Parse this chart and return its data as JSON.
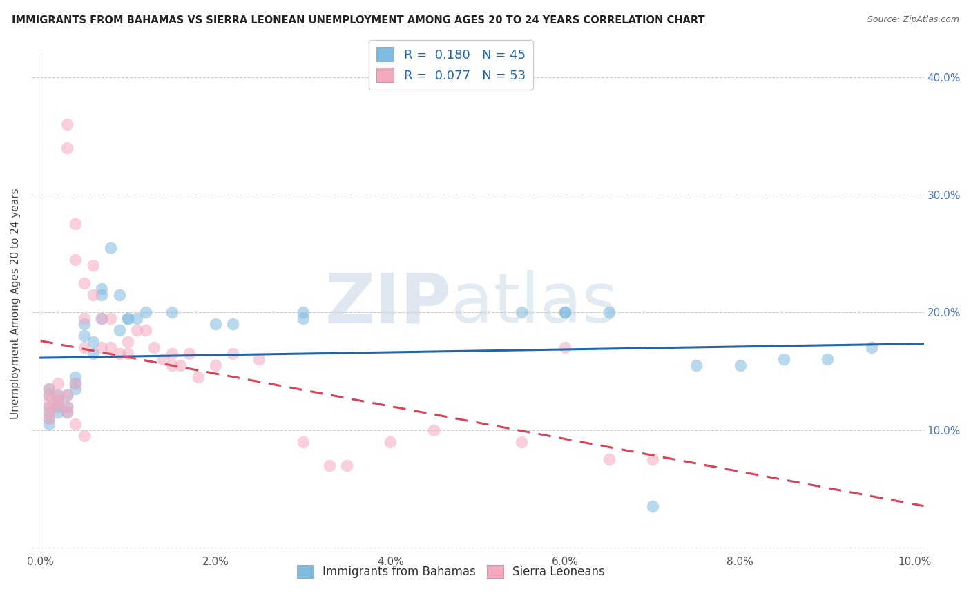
{
  "title": "IMMIGRANTS FROM BAHAMAS VS SIERRA LEONEAN UNEMPLOYMENT AMONG AGES 20 TO 24 YEARS CORRELATION CHART",
  "source": "Source: ZipAtlas.com",
  "ylabel": "Unemployment Among Ages 20 to 24 years",
  "xlim": [
    -0.001,
    0.101
  ],
  "ylim": [
    -0.005,
    0.42
  ],
  "xticks": [
    0.0,
    0.02,
    0.04,
    0.06,
    0.08,
    0.1
  ],
  "xtick_labels": [
    "0.0%",
    "2.0%",
    "4.0%",
    "6.0%",
    "8.0%",
    "10.0%"
  ],
  "yticks": [
    0.0,
    0.1,
    0.2,
    0.3,
    0.4
  ],
  "ytick_labels_right": [
    "",
    "10.0%",
    "20.0%",
    "30.0%",
    "40.0%"
  ],
  "blue_color": "#7fbadf",
  "pink_color": "#f4a8be",
  "blue_line_color": "#2166ac",
  "pink_line_color": "#d6455a",
  "R_blue": 0.18,
  "N_blue": 45,
  "R_pink": 0.077,
  "N_pink": 53,
  "watermark_zip": "ZIP",
  "watermark_atlas": "atlas",
  "blue_scatter_x": [
    0.001,
    0.001,
    0.001,
    0.001,
    0.001,
    0.001,
    0.002,
    0.002,
    0.002,
    0.002,
    0.003,
    0.003,
    0.003,
    0.004,
    0.004,
    0.004,
    0.005,
    0.005,
    0.006,
    0.006,
    0.007,
    0.007,
    0.007,
    0.008,
    0.009,
    0.009,
    0.01,
    0.01,
    0.011,
    0.012,
    0.015,
    0.02,
    0.022,
    0.03,
    0.03,
    0.055,
    0.06,
    0.065,
    0.075,
    0.08,
    0.085,
    0.09,
    0.095,
    0.06,
    0.07
  ],
  "blue_scatter_y": [
    0.13,
    0.135,
    0.12,
    0.115,
    0.11,
    0.105,
    0.13,
    0.125,
    0.12,
    0.115,
    0.13,
    0.12,
    0.115,
    0.135,
    0.14,
    0.145,
    0.18,
    0.19,
    0.175,
    0.165,
    0.22,
    0.215,
    0.195,
    0.255,
    0.215,
    0.185,
    0.195,
    0.195,
    0.195,
    0.2,
    0.2,
    0.19,
    0.19,
    0.195,
    0.2,
    0.2,
    0.2,
    0.2,
    0.155,
    0.155,
    0.16,
    0.16,
    0.17,
    0.2,
    0.035
  ],
  "pink_scatter_x": [
    0.001,
    0.001,
    0.001,
    0.001,
    0.001,
    0.002,
    0.002,
    0.002,
    0.003,
    0.003,
    0.003,
    0.003,
    0.004,
    0.004,
    0.004,
    0.005,
    0.005,
    0.005,
    0.006,
    0.006,
    0.007,
    0.007,
    0.008,
    0.008,
    0.009,
    0.01,
    0.01,
    0.011,
    0.012,
    0.013,
    0.014,
    0.015,
    0.015,
    0.016,
    0.017,
    0.018,
    0.02,
    0.022,
    0.025,
    0.03,
    0.033,
    0.035,
    0.04,
    0.045,
    0.055,
    0.06,
    0.065,
    0.07,
    0.001,
    0.002,
    0.003,
    0.004,
    0.005
  ],
  "pink_scatter_y": [
    0.13,
    0.125,
    0.12,
    0.115,
    0.11,
    0.14,
    0.13,
    0.12,
    0.36,
    0.34,
    0.13,
    0.12,
    0.275,
    0.245,
    0.14,
    0.225,
    0.195,
    0.17,
    0.24,
    0.215,
    0.195,
    0.17,
    0.195,
    0.17,
    0.165,
    0.175,
    0.165,
    0.185,
    0.185,
    0.17,
    0.16,
    0.165,
    0.155,
    0.155,
    0.165,
    0.145,
    0.155,
    0.165,
    0.16,
    0.09,
    0.07,
    0.07,
    0.09,
    0.1,
    0.09,
    0.17,
    0.075,
    0.075,
    0.135,
    0.125,
    0.115,
    0.105,
    0.095
  ]
}
